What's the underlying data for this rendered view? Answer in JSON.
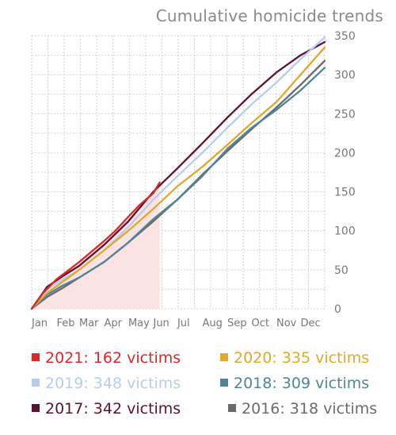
{
  "chart_data": {
    "type": "line",
    "title": "Cumulative homicide trends",
    "xlabel": "",
    "ylabel": "",
    "x_unit": "day_of_year",
    "xlim": [
      1,
      365
    ],
    "ylim": [
      0,
      350
    ],
    "y_ticks": [
      0,
      50,
      100,
      150,
      200,
      250,
      300,
      350
    ],
    "x_ticks": [
      {
        "label": "Jan",
        "day": 1
      },
      {
        "label": "Feb",
        "day": 32
      },
      {
        "label": "Mar",
        "day": 60
      },
      {
        "label": "Apr",
        "day": 91
      },
      {
        "label": "May",
        "day": 121
      },
      {
        "label": "Jun",
        "day": 152
      },
      {
        "label": "Jul",
        "day": 182
      },
      {
        "label": "Aug",
        "day": 213
      },
      {
        "label": "Sep",
        "day": 244
      },
      {
        "label": "Oct",
        "day": 274
      },
      {
        "label": "Nov",
        "day": 305
      },
      {
        "label": "Dec",
        "day": 335
      }
    ],
    "grid": true,
    "legend_position": "bottom",
    "series": [
      {
        "name": "2021",
        "legend": "2021: 162 victims",
        "color": "#d62b2b",
        "fill": "#fbe3e3",
        "x": [
          1,
          15,
          32,
          45,
          60,
          75,
          91,
          105,
          121,
          135,
          152,
          160
        ],
        "y": [
          0,
          20,
          38,
          48,
          60,
          73,
          87,
          100,
          118,
          133,
          148,
          162
        ]
      },
      {
        "name": "2020",
        "legend": "2020: 335 victims",
        "color": "#e0a82e",
        "x": [
          1,
          20,
          40,
          60,
          91,
          121,
          152,
          182,
          213,
          244,
          274,
          305,
          335,
          365
        ],
        "y": [
          0,
          20,
          35,
          50,
          75,
          100,
          128,
          157,
          182,
          210,
          238,
          265,
          300,
          335
        ]
      },
      {
        "name": "2019",
        "legend": "2019: 348 victims",
        "color": "#b8cdea",
        "x": [
          1,
          20,
          40,
          60,
          91,
          121,
          152,
          182,
          213,
          244,
          274,
          305,
          335,
          365
        ],
        "y": [
          0,
          25,
          38,
          50,
          75,
          105,
          140,
          170,
          200,
          232,
          262,
          290,
          320,
          348
        ]
      },
      {
        "name": "2018",
        "legend": "2018: 309 victims",
        "color": "#4f8597",
        "x": [
          1,
          20,
          40,
          60,
          91,
          121,
          152,
          182,
          213,
          244,
          274,
          305,
          335,
          365
        ],
        "y": [
          0,
          18,
          30,
          40,
          60,
          85,
          115,
          140,
          170,
          205,
          232,
          255,
          280,
          309
        ]
      },
      {
        "name": "2017",
        "legend": "2017: 342 victims",
        "color": "#5c1232",
        "x": [
          1,
          20,
          40,
          60,
          91,
          121,
          152,
          182,
          213,
          244,
          274,
          305,
          335,
          365
        ],
        "y": [
          0,
          28,
          42,
          55,
          82,
          112,
          150,
          180,
          212,
          245,
          275,
          303,
          325,
          342
        ]
      },
      {
        "name": "2016",
        "legend": "2016: 318 victims",
        "color": "#6b6b6b",
        "x": [
          1,
          20,
          40,
          60,
          91,
          121,
          152,
          182,
          213,
          244,
          274,
          305,
          335,
          365
        ],
        "y": [
          0,
          15,
          27,
          40,
          60,
          85,
          112,
          140,
          172,
          202,
          230,
          258,
          287,
          318
        ]
      }
    ]
  }
}
